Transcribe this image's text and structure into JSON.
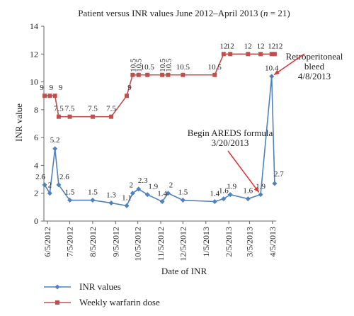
{
  "chart_data": {
    "type": "line",
    "title": "Patient versus INR values June 2012–April 2013 (n = 21)",
    "xlabel": "Date of INR",
    "ylabel": "INR value",
    "ylim": [
      0,
      14
    ],
    "y_ticks": [
      0,
      2,
      4,
      6,
      8,
      10,
      12,
      14
    ],
    "x_ticks": [
      "6/5/2012",
      "7/5/2012",
      "8/5/2012",
      "9/5/2012",
      "10/5/2012",
      "11/5/2012",
      "12/5/2012",
      "1/5/2013",
      "2/5/2013",
      "3/5/2013",
      "4/5/2013"
    ],
    "x_range": [
      "2012-05-31",
      "2013-04-10"
    ],
    "grid": false,
    "legend_position": "bottom",
    "series": [
      {
        "name": "INR values",
        "color": "#4f81bd",
        "marker": "diamond",
        "points": [
          {
            "x": "2012-06-01",
            "y": 2.6,
            "label": "2.6"
          },
          {
            "x": "2012-06-08",
            "y": 2.0,
            "label": "2"
          },
          {
            "x": "2012-06-15",
            "y": 5.2,
            "label": "5.2"
          },
          {
            "x": "2012-06-20",
            "y": 2.6,
            "label": "2.6"
          },
          {
            "x": "2012-07-05",
            "y": 1.5,
            "label": "1.5"
          },
          {
            "x": "2012-08-05",
            "y": 1.5,
            "label": "1.5"
          },
          {
            "x": "2012-08-30",
            "y": 1.3,
            "label": "1.3"
          },
          {
            "x": "2012-09-20",
            "y": 1.1,
            "label": "1.1"
          },
          {
            "x": "2012-09-28",
            "y": 2.0,
            "label": "2"
          },
          {
            "x": "2012-10-06",
            "y": 2.3,
            "label": "2.3"
          },
          {
            "x": "2012-10-18",
            "y": 1.9,
            "label": "1.9"
          },
          {
            "x": "2012-11-07",
            "y": 1.4,
            "label": "1.4"
          },
          {
            "x": "2012-11-15",
            "y": 2.0,
            "label": "2"
          },
          {
            "x": "2012-12-05",
            "y": 1.5,
            "label": "1.5"
          },
          {
            "x": "2013-01-17",
            "y": 1.4,
            "label": "1.4"
          },
          {
            "x": "2013-01-29",
            "y": 1.6,
            "label": "1.6"
          },
          {
            "x": "2013-02-07",
            "y": 1.9,
            "label": "1.9"
          },
          {
            "x": "2013-03-03",
            "y": 1.6,
            "label": "1.6"
          },
          {
            "x": "2013-03-20",
            "y": 1.9,
            "label": "1.9"
          },
          {
            "x": "2013-04-04",
            "y": 10.4,
            "label": "10.4"
          },
          {
            "x": "2013-04-08",
            "y": 2.7,
            "label": "2.7"
          }
        ]
      },
      {
        "name": "Weekly warfarin dose",
        "color": "#c0504d",
        "marker": "square",
        "points": [
          {
            "x": "2012-06-01",
            "y": 9,
            "label": "9"
          },
          {
            "x": "2012-06-08",
            "y": 9,
            "label": "9"
          },
          {
            "x": "2012-06-15",
            "y": 9,
            "label": "9"
          },
          {
            "x": "2012-06-20",
            "y": 7.5,
            "label": "7.5"
          },
          {
            "x": "2012-07-05",
            "y": 7.5,
            "label": "7.5"
          },
          {
            "x": "2012-08-05",
            "y": 7.5,
            "label": "7.5"
          },
          {
            "x": "2012-08-30",
            "y": 7.5,
            "label": "7.5"
          },
          {
            "x": "2012-09-20",
            "y": 9,
            "label": "9"
          },
          {
            "x": "2012-09-28",
            "y": 10.5,
            "label": "10.5"
          },
          {
            "x": "2012-10-06",
            "y": 10.5,
            "label": "10.5"
          },
          {
            "x": "2012-10-18",
            "y": 10.5,
            "label": "10.5"
          },
          {
            "x": "2012-11-07",
            "y": 10.5,
            "label": "10.5"
          },
          {
            "x": "2012-11-15",
            "y": 10.5,
            "label": "10.5"
          },
          {
            "x": "2012-12-05",
            "y": 10.5,
            "label": "10.5"
          },
          {
            "x": "2013-01-17",
            "y": 10.5,
            "label": "10.5"
          },
          {
            "x": "2013-01-29",
            "y": 12,
            "label": "12"
          },
          {
            "x": "2013-02-07",
            "y": 12,
            "label": "12"
          },
          {
            "x": "2013-03-03",
            "y": 12,
            "label": "12"
          },
          {
            "x": "2013-03-20",
            "y": 12,
            "label": "12"
          },
          {
            "x": "2013-04-04",
            "y": 12,
            "label": "12"
          },
          {
            "x": "2013-04-08",
            "y": 12,
            "label": "12"
          }
        ]
      }
    ],
    "annotations": [
      {
        "lines": [
          "Retroperitoneal",
          "bleed",
          "4/8/2013"
        ],
        "arrow_color": "#e03030",
        "points_to": {
          "x": "2013-04-04",
          "y": 10.4
        }
      },
      {
        "lines": [
          "Begin AREDS formula",
          "3/20/2013"
        ],
        "arrow_color": "#e03030",
        "points_to": {
          "x": "2013-03-20",
          "y": 1.9
        }
      }
    ]
  }
}
